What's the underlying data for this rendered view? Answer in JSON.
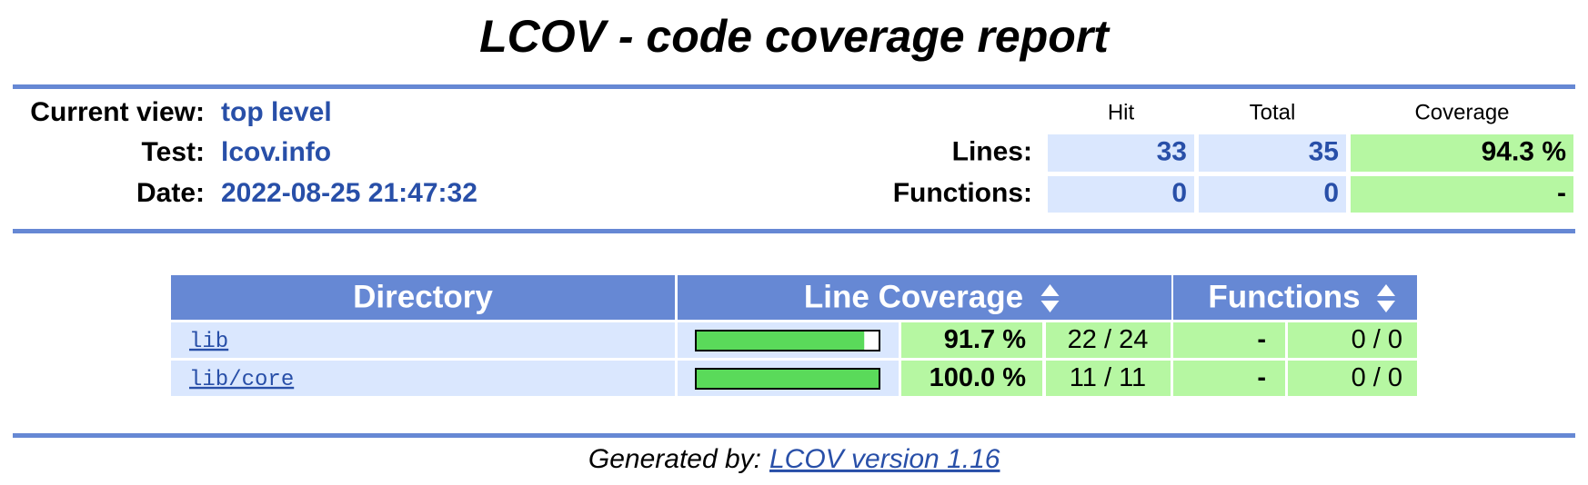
{
  "title": "LCOV - code coverage report",
  "header": {
    "labels": {
      "current_view": "Current view:",
      "test": "Test:",
      "date": "Date:"
    },
    "current_view": "top level",
    "test": "lcov.info",
    "date": "2022-08-25 21:47:32",
    "columns": [
      "Hit",
      "Total",
      "Coverage"
    ],
    "rows": [
      {
        "label": "Lines:",
        "hit": 33,
        "total": 35,
        "coverage": "94.3 %"
      },
      {
        "label": "Functions:",
        "hit": 0,
        "total": 0,
        "coverage": "-"
      }
    ]
  },
  "table": {
    "columns": [
      "Directory",
      "Line Coverage",
      "Functions"
    ],
    "rows": [
      {
        "directory": "lib",
        "line_coverage": {
          "value": 91.7,
          "label": "91.7 %"
        },
        "lines": "22 / 24",
        "function_coverage": "-",
        "functions": "0 / 0"
      },
      {
        "directory": "lib/core",
        "line_coverage": {
          "value": 100.0,
          "label": "100.0 %"
        },
        "lines": "11 / 11",
        "function_coverage": "-",
        "functions": "0 / 0"
      }
    ]
  },
  "footer": {
    "prefix": "Generated by:",
    "link": "LCOV version 1.16"
  }
}
